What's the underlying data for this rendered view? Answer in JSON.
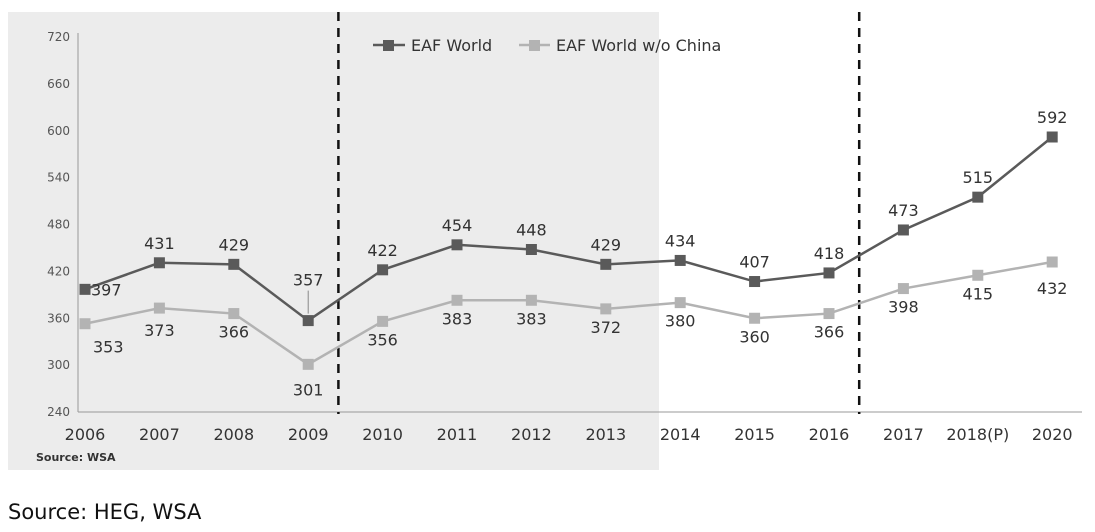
{
  "chart_data": {
    "type": "line",
    "categories": [
      "2006",
      "2007",
      "2008",
      "2009",
      "2010",
      "2011",
      "2012",
      "2013",
      "2014",
      "2015",
      "2016",
      "2017",
      "2018(P)",
      "2020"
    ],
    "series": [
      {
        "name": "EAF World",
        "values": [
          397,
          431,
          429,
          357,
          422,
          454,
          448,
          429,
          434,
          407,
          418,
          473,
          515,
          592
        ],
        "color": "#5a5a5a"
      },
      {
        "name": "EAF World w/o China",
        "values": [
          353,
          373,
          366,
          301,
          356,
          383,
          383,
          372,
          380,
          360,
          366,
          398,
          415,
          432
        ],
        "color": "#b3b3b3"
      }
    ],
    "yticks": [
      240,
      300,
      360,
      420,
      480,
      540,
      600,
      660,
      720
    ],
    "ylim": [
      240,
      720
    ],
    "legend_position": "top-center",
    "grid": false,
    "source_note": "Source: WSA"
  },
  "footer": {
    "source": "Source: HEG, WSA"
  },
  "colors": {
    "shaded_background": "#ececec",
    "axis": "#999999"
  }
}
